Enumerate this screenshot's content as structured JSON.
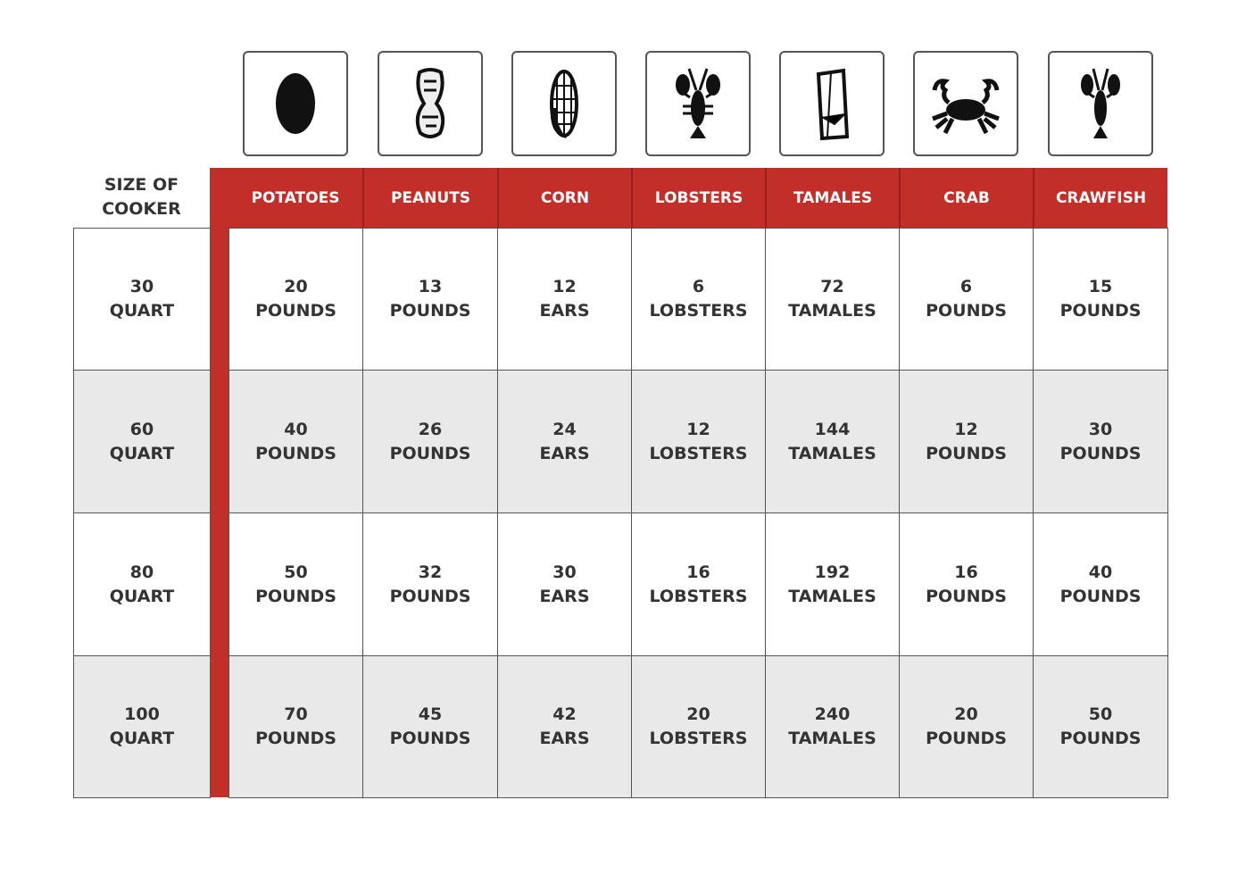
{
  "header": {
    "size_label_line1": "SIZE OF",
    "size_label_line2": "COOKER"
  },
  "columns": [
    {
      "label": "POTATOES",
      "icon": "potato-icon"
    },
    {
      "label": "PEANUTS",
      "icon": "peanut-icon"
    },
    {
      "label": "CORN",
      "icon": "corn-icon"
    },
    {
      "label": "LOBSTERS",
      "icon": "lobster-icon"
    },
    {
      "label": "TAMALES",
      "icon": "tamale-icon"
    },
    {
      "label": "CRAB",
      "icon": "crab-icon"
    },
    {
      "label": "CRAWFISH",
      "icon": "crawfish-icon"
    }
  ],
  "colors": {
    "accent": "#c12f28",
    "alt_row": "#e9e9e9",
    "text": "#333333"
  },
  "chart_data": {
    "type": "table",
    "row_header": "SIZE OF COOKER",
    "columns": [
      "POTATOES",
      "PEANUTS",
      "CORN",
      "LOBSTERS",
      "TAMALES",
      "CRAB",
      "CRAWFISH"
    ],
    "rows": [
      {
        "size": "30",
        "unit": "QUART",
        "cells": [
          [
            "20",
            "POUNDS"
          ],
          [
            "13",
            "POUNDS"
          ],
          [
            "12",
            "EARS"
          ],
          [
            "6",
            "LOBSTERS"
          ],
          [
            "72",
            "TAMALES"
          ],
          [
            "6",
            "POUNDS"
          ],
          [
            "15",
            "POUNDS"
          ]
        ]
      },
      {
        "size": "60",
        "unit": "QUART",
        "cells": [
          [
            "40",
            "POUNDS"
          ],
          [
            "26",
            "POUNDS"
          ],
          [
            "24",
            "EARS"
          ],
          [
            "12",
            "LOBSTERS"
          ],
          [
            "144",
            "TAMALES"
          ],
          [
            "12",
            "POUNDS"
          ],
          [
            "30",
            "POUNDS"
          ]
        ]
      },
      {
        "size": "80",
        "unit": "QUART",
        "cells": [
          [
            "50",
            "POUNDS"
          ],
          [
            "32",
            "POUNDS"
          ],
          [
            "30",
            "EARS"
          ],
          [
            "16",
            "LOBSTERS"
          ],
          [
            "192",
            "TAMALES"
          ],
          [
            "16",
            "POUNDS"
          ],
          [
            "40",
            "POUNDS"
          ]
        ]
      },
      {
        "size": "100",
        "unit": "QUART",
        "cells": [
          [
            "70",
            "POUNDS"
          ],
          [
            "45",
            "POUNDS"
          ],
          [
            "42",
            "EARS"
          ],
          [
            "20",
            "LOBSTERS"
          ],
          [
            "240",
            "TAMALES"
          ],
          [
            "20",
            "POUNDS"
          ],
          [
            "50",
            "POUNDS"
          ]
        ]
      }
    ]
  }
}
